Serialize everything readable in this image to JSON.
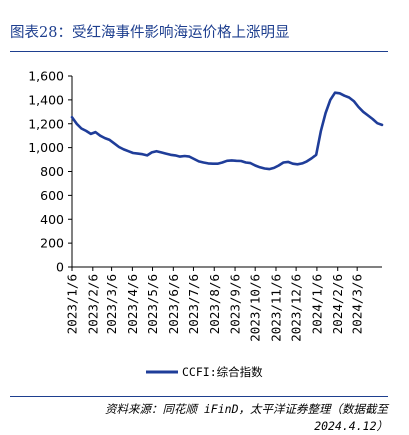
{
  "title": "图表28：受红海事件影响海运价格上涨明显",
  "source": "资料来源：同花顺 iFinD，太平洋证券整理（数据截至 2024.4.12）",
  "colors": {
    "line": "#1f3d99",
    "accent": "#1e3f8f",
    "axis": "#000000"
  },
  "chart_data": {
    "type": "line",
    "title": "",
    "xlabel": "",
    "ylabel": "",
    "ylim": [
      0,
      1600
    ],
    "yticks": [
      0,
      200,
      400,
      600,
      800,
      1000,
      1200,
      1400,
      1600
    ],
    "ytick_labels": [
      "0",
      "200",
      "400",
      "600",
      "800",
      "1,000",
      "1,200",
      "1,400",
      "1,600"
    ],
    "xticks": [
      "2023/1/6",
      "2023/2/6",
      "2023/3/6",
      "2023/4/6",
      "2023/5/6",
      "2023/6/6",
      "2023/7/6",
      "2023/8/6",
      "2023/9/6",
      "2023/10/6",
      "2023/11/6",
      "2023/12/6",
      "2024/1/6",
      "2024/2/6",
      "2024/3/6"
    ],
    "xrange": [
      "2023/1/6",
      "2024/4/12"
    ],
    "grid": false,
    "legend": "bottom",
    "series": [
      {
        "name": "CCFI:综合指数",
        "points": [
          [
            "2023/1/6",
            1255
          ],
          [
            "2023/1/13",
            1200
          ],
          [
            "2023/1/20",
            1160
          ],
          [
            "2023/1/27",
            1140
          ],
          [
            "2023/2/3",
            1115
          ],
          [
            "2023/2/10",
            1130
          ],
          [
            "2023/2/17",
            1100
          ],
          [
            "2023/2/24",
            1080
          ],
          [
            "2023/3/3",
            1065
          ],
          [
            "2023/3/10",
            1035
          ],
          [
            "2023/3/17",
            1005
          ],
          [
            "2023/3/24",
            985
          ],
          [
            "2023/3/31",
            970
          ],
          [
            "2023/4/7",
            955
          ],
          [
            "2023/4/14",
            950
          ],
          [
            "2023/4/21",
            945
          ],
          [
            "2023/4/28",
            935
          ],
          [
            "2023/5/5",
            960
          ],
          [
            "2023/5/12",
            970
          ],
          [
            "2023/5/19",
            960
          ],
          [
            "2023/5/26",
            950
          ],
          [
            "2023/6/2",
            940
          ],
          [
            "2023/6/9",
            935
          ],
          [
            "2023/6/16",
            925
          ],
          [
            "2023/6/23",
            930
          ],
          [
            "2023/6/30",
            925
          ],
          [
            "2023/7/7",
            905
          ],
          [
            "2023/7/14",
            885
          ],
          [
            "2023/7/21",
            875
          ],
          [
            "2023/7/28",
            868
          ],
          [
            "2023/8/4",
            865
          ],
          [
            "2023/8/11",
            865
          ],
          [
            "2023/8/18",
            875
          ],
          [
            "2023/8/25",
            890
          ],
          [
            "2023/9/1",
            893
          ],
          [
            "2023/9/8",
            890
          ],
          [
            "2023/9/15",
            888
          ],
          [
            "2023/9/22",
            875
          ],
          [
            "2023/9/29",
            870
          ],
          [
            "2023/10/6",
            850
          ],
          [
            "2023/10/13",
            835
          ],
          [
            "2023/10/20",
            825
          ],
          [
            "2023/10/27",
            820
          ],
          [
            "2023/11/3",
            830
          ],
          [
            "2023/11/10",
            850
          ],
          [
            "2023/11/17",
            875
          ],
          [
            "2023/11/24",
            880
          ],
          [
            "2023/12/1",
            865
          ],
          [
            "2023/12/8",
            860
          ],
          [
            "2023/12/15",
            868
          ],
          [
            "2023/12/22",
            885
          ],
          [
            "2023/12/29",
            910
          ],
          [
            "2024/1/5",
            940
          ],
          [
            "2024/1/12",
            1140
          ],
          [
            "2024/1/19",
            1290
          ],
          [
            "2024/1/26",
            1400
          ],
          [
            "2024/2/2",
            1460
          ],
          [
            "2024/2/9",
            1455
          ],
          [
            "2024/2/16",
            1435
          ],
          [
            "2024/2/23",
            1420
          ],
          [
            "2024/3/1",
            1390
          ],
          [
            "2024/3/8",
            1340
          ],
          [
            "2024/3/15",
            1300
          ],
          [
            "2024/3/22",
            1270
          ],
          [
            "2024/3/29",
            1240
          ],
          [
            "2024/4/5",
            1205
          ],
          [
            "2024/4/12",
            1190
          ]
        ]
      }
    ]
  }
}
